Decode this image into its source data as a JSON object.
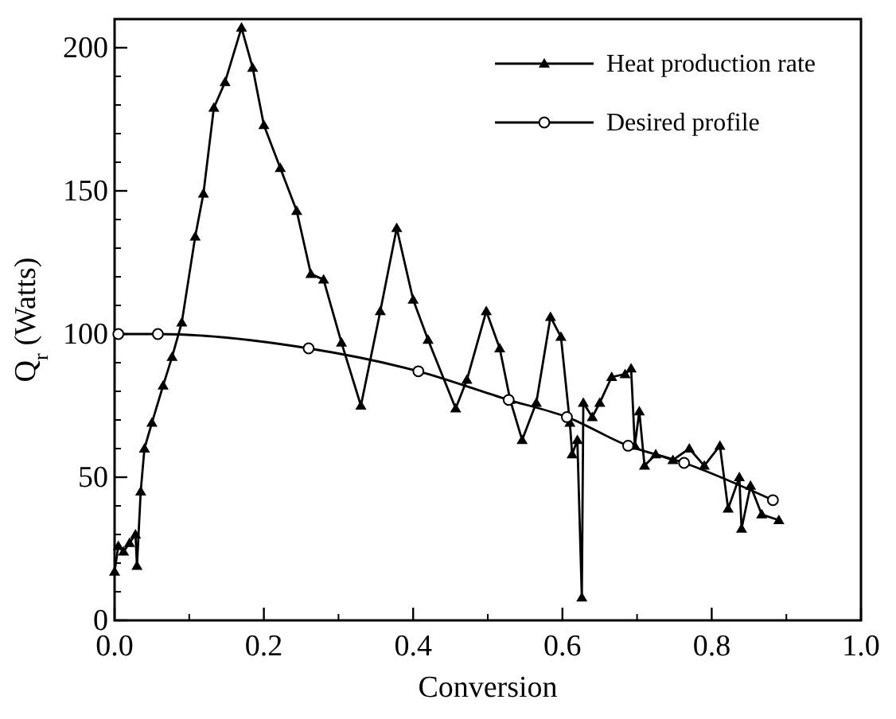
{
  "chart_data": {
    "type": "line",
    "xlabel": "Conversion",
    "ylabel": "Q$_{r}$ (Watts)",
    "xlim": [
      0,
      1
    ],
    "ylim": [
      0,
      210
    ],
    "xticks": [
      {
        "value": 0,
        "label": "0.0"
      },
      {
        "value": 0.2,
        "label": "0.2"
      },
      {
        "value": 0.4,
        "label": "0.4"
      },
      {
        "value": 0.6,
        "label": "0.6"
      },
      {
        "value": 0.8,
        "label": "0.8"
      },
      {
        "value": 1,
        "label": "1.0"
      }
    ],
    "yticks": [
      0,
      50,
      100,
      150,
      200
    ],
    "grid": false,
    "legend": "top right",
    "series": [
      {
        "name": "Heat production rate",
        "color": "#000000",
        "marker": "triangle",
        "x": [
          0,
          0.005,
          0.012,
          0.02,
          0.028,
          0.03,
          0.035,
          0.04,
          0.05,
          0.065,
          0.077,
          0.09,
          0.108,
          0.119,
          0.133,
          0.148,
          0.17,
          0.185,
          0.2,
          0.222,
          0.244,
          0.263,
          0.28,
          0.304,
          0.33,
          0.356,
          0.378,
          0.4,
          0.42,
          0.457,
          0.472,
          0.498,
          0.516,
          0.53,
          0.546,
          0.565,
          0.584,
          0.598,
          0.61,
          0.613,
          0.62,
          0.626,
          0.628,
          0.64,
          0.65,
          0.666,
          0.684,
          0.692,
          0.697,
          0.703,
          0.71,
          0.725,
          0.748,
          0.77,
          0.79,
          0.811,
          0.822,
          0.837,
          0.84,
          0.852,
          0.867,
          0.89
        ],
        "values": [
          17,
          26,
          24,
          27,
          30,
          19,
          45,
          60,
          69,
          82,
          92,
          104,
          134,
          149,
          179,
          188,
          207,
          193,
          173,
          158,
          143,
          121,
          119,
          97,
          75,
          108,
          137,
          112,
          98,
          74,
          84,
          108,
          95,
          77,
          63,
          76,
          106,
          99,
          69,
          58,
          63,
          8,
          76,
          71,
          76,
          85,
          86,
          88,
          61,
          73,
          54,
          58,
          56,
          60,
          54,
          61,
          39,
          50,
          32,
          47,
          37,
          35
        ]
      },
      {
        "name": "Desired profile",
        "color": "#000000",
        "marker": "circle",
        "x": [
          0.005,
          0.058,
          0.26,
          0.407,
          0.528,
          0.606,
          0.688,
          0.763,
          0.882
        ],
        "values": [
          100,
          100,
          95,
          87,
          77,
          71,
          61,
          55,
          42
        ]
      }
    ]
  }
}
